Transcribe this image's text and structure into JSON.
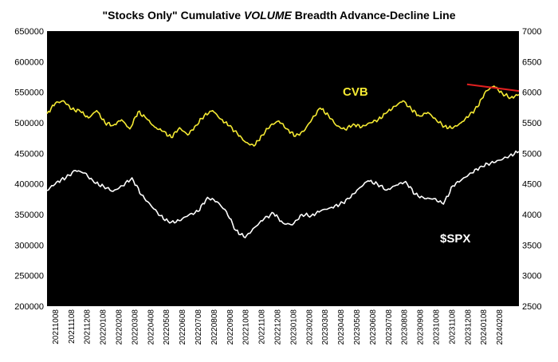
{
  "chart_data": {
    "type": "line",
    "title_parts": [
      "\"Stocks Only\" Cumulative ",
      "VOLUME",
      " Breadth Advance-Decline Line"
    ],
    "left_axis": {
      "min": 200000,
      "max": 650000,
      "ticks": [
        "650000",
        "600000",
        "550000",
        "500000",
        "450000",
        "400000",
        "350000",
        "300000",
        "250000",
        "200000"
      ]
    },
    "right_axis": {
      "min": 2500,
      "max": 7000,
      "ticks": [
        "7000",
        "6500",
        "6000",
        "5500",
        "5000",
        "4500",
        "4000",
        "3500",
        "3000",
        "2500"
      ]
    },
    "x_ticks": [
      "20211008",
      "20211108",
      "20211208",
      "20220108",
      "20220208",
      "20220308",
      "20220408",
      "20220508",
      "20220608",
      "20220708",
      "20220808",
      "20220908",
      "20221008",
      "20221108",
      "20221208",
      "20230108",
      "20230208",
      "20230308",
      "20230408",
      "20230508",
      "20230608",
      "20230708",
      "20230808",
      "20230908",
      "20231008",
      "20231108",
      "20231208",
      "20240108",
      "20240208"
    ],
    "series": [
      {
        "name": "CVB",
        "axis": "left",
        "color": "#f5ea33",
        "values": [
          515000,
          532000,
          536000,
          522000,
          519000,
          508000,
          520000,
          500000,
          496000,
          505000,
          490000,
          518000,
          507000,
          493000,
          486000,
          476000,
          492000,
          480000,
          496000,
          512000,
          520000,
          506000,
          495000,
          482000,
          468000,
          462000,
          480000,
          496000,
          503000,
          490000,
          478000,
          486000,
          506000,
          524000,
          512000,
          495000,
          489000,
          498000,
          493000,
          500000,
          505000,
          516000,
          527000,
          536000,
          522000,
          511000,
          517000,
          505000,
          494000,
          491000,
          500000,
          512000,
          526000,
          552000,
          560000,
          548000,
          541000,
          546000
        ]
      },
      {
        "name": "$SPX",
        "axis": "right",
        "color": "#ffffff",
        "values": [
          4390,
          4530,
          4600,
          4720,
          4680,
          4520,
          4460,
          4380,
          4470,
          4600,
          4320,
          4150,
          3980,
          3860,
          3900,
          3990,
          4050,
          4280,
          4210,
          4050,
          3740,
          3620,
          3790,
          3930,
          4020,
          3860,
          3830,
          4000,
          3980,
          4060,
          4110,
          4160,
          4260,
          4420,
          4550,
          4500,
          4400,
          4480,
          4540,
          4330,
          4260,
          4260,
          4170,
          4470,
          4580,
          4680,
          4790,
          4840,
          4890,
          4960,
          5030
        ]
      }
    ],
    "annotations": [
      {
        "text": "CVB",
        "color": "#f5ea33"
      },
      {
        "text": "$SPX",
        "color": "#ffffff"
      }
    ],
    "trendline": {
      "color": "#e02020",
      "points": [
        [
          0.89,
          563000
        ],
        [
          1.0,
          552000
        ]
      ]
    },
    "background": "#000000",
    "grid": false
  }
}
